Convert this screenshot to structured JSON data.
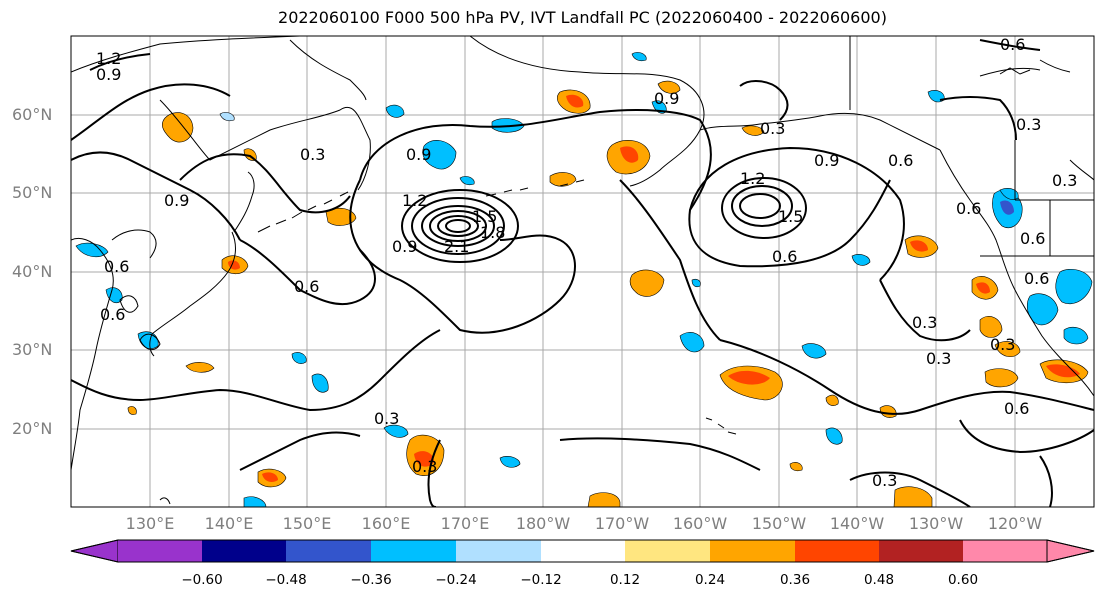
{
  "title": "2022060100 F000 500 hPa PV, IVT Landfall PC (2022060400 - 2022060600)",
  "lat_labels": [
    "60°N",
    "50°N",
    "40°N",
    "30°N",
    "20°N"
  ],
  "lon_labels": [
    "130°E",
    "140°E",
    "150°E",
    "160°E",
    "170°E",
    "180°W",
    "170°W",
    "160°W",
    "150°W",
    "140°W",
    "130°W",
    "120°W"
  ],
  "contour_labels": [
    "1.2",
    "0.9",
    "0.6",
    "0.3",
    "0.9",
    "1.2",
    "1.5",
    "2.1",
    "1.8",
    "0.9",
    "1.2",
    "1.5",
    "0.6",
    "0.9",
    "0.6",
    "0.9",
    "0.6",
    "0.6",
    "0.3",
    "0.9",
    "0.6",
    "0.3",
    "0.3",
    "0.3",
    "0.3",
    "0.3",
    "0.3",
    "0.6",
    "0.6",
    "0.3",
    "0.3",
    "0.6",
    "0.6"
  ],
  "colorbar": {
    "ticks": [
      "−0.60",
      "−0.48",
      "−0.36",
      "−0.24",
      "−0.12",
      "0.12",
      "0.24",
      "0.36",
      "0.48",
      "0.60"
    ],
    "colors": [
      "#9933cc",
      "#00008b",
      "#3355cc",
      "#00bfff",
      "#b0e0ff",
      "#ffffff",
      "#ffe680",
      "#ffa500",
      "#ff4500",
      "#b22222",
      "#ff88aa"
    ]
  }
}
